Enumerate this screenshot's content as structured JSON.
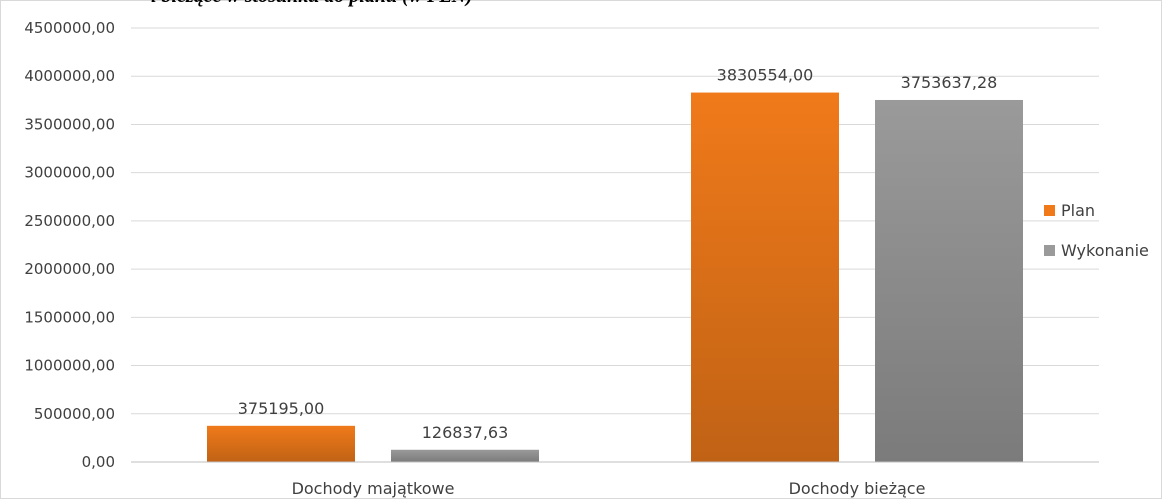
{
  "chart_data": {
    "type": "bar",
    "title": "i bieżące w stosunku do planu (w PLN)",
    "categories": [
      "Dochody majątkowe",
      "Dochody bieżące"
    ],
    "series": [
      {
        "name": "Plan",
        "values": [
          375195.0,
          3830554.0
        ],
        "value_labels": [
          "375195,00",
          "3830554,00"
        ],
        "color": "#f07a1a"
      },
      {
        "name": "Wykonanie",
        "values": [
          126837.63,
          3753637.28
        ],
        "value_labels": [
          "126837,63",
          "3753637,28"
        ],
        "color": "#9a9a9a"
      }
    ],
    "ylim": [
      0,
      4500000
    ],
    "y_ticks": [
      0,
      500000,
      1000000,
      1500000,
      2000000,
      2500000,
      3000000,
      3500000,
      4000000,
      4500000
    ],
    "y_tick_labels": [
      "0,00",
      "500000,00",
      "1000000,00",
      "1500000,00",
      "2000000,00",
      "2500000,00",
      "3000000,00",
      "3500000,00",
      "4000000,00",
      "4500000,00"
    ],
    "grid": true,
    "legend_position": "right"
  }
}
